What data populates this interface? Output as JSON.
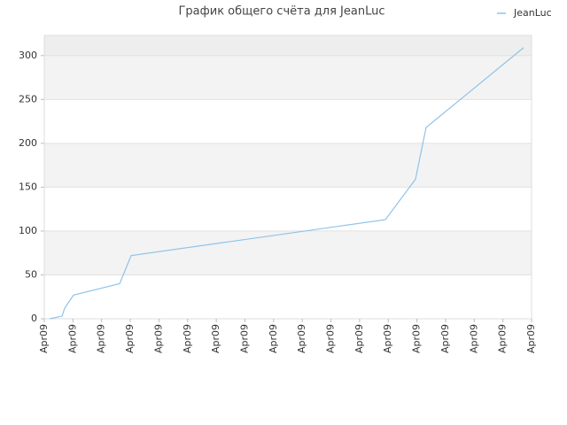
{
  "chart_data": {
    "type": "line",
    "title": "График общего счёта для JeanLuc",
    "x": [
      0.19,
      0.62,
      0.71,
      1.02,
      2.63,
      3.03,
      11.9,
      12.95,
      13.32,
      16.72
    ],
    "series": [
      {
        "name": "JeanLuc",
        "color": "#8fc3ea",
        "values": [
          0,
          3,
          12,
          27,
          40,
          72,
          113,
          159,
          218,
          309
        ]
      }
    ],
    "xlim": [
      0,
      17
    ],
    "xticks": [
      {
        "value": 0,
        "label": "Apr09"
      },
      {
        "value": 1,
        "label": "Apr09"
      },
      {
        "value": 2,
        "label": "Apr09"
      },
      {
        "value": 3,
        "label": "Apr09"
      },
      {
        "value": 4,
        "label": "Apr09"
      },
      {
        "value": 5,
        "label": "Apr09"
      },
      {
        "value": 6,
        "label": "Apr09"
      },
      {
        "value": 7,
        "label": "Apr09"
      },
      {
        "value": 8,
        "label": "Apr09"
      },
      {
        "value": 9,
        "label": "Apr09"
      },
      {
        "value": 10,
        "label": "Apr09"
      },
      {
        "value": 11,
        "label": "Apr09"
      },
      {
        "value": 12,
        "label": "Apr09"
      },
      {
        "value": 13,
        "label": "Apr09"
      },
      {
        "value": 14,
        "label": "Apr09"
      },
      {
        "value": 15,
        "label": "Apr09"
      },
      {
        "value": 16,
        "label": "Apr09"
      },
      {
        "value": 17,
        "label": "Apr09"
      }
    ],
    "ylim": [
      0,
      323
    ],
    "yticks": [
      0,
      50,
      100,
      150,
      200,
      250,
      300
    ],
    "grid": true,
    "legend": "top-right"
  }
}
